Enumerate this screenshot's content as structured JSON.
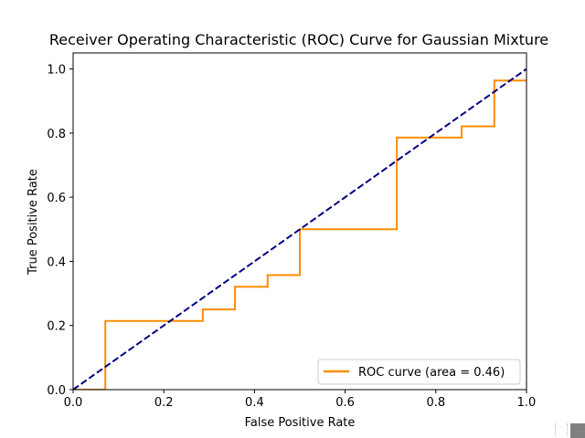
{
  "chart_data": {
    "type": "line",
    "title": "Receiver Operating Characteristic (ROC) Curve for Gaussian Mixture",
    "xlabel": "False Positive Rate",
    "ylabel": "True Positive Rate",
    "xlim": [
      0.0,
      1.0
    ],
    "ylim": [
      0.0,
      1.05
    ],
    "xticks": [
      0.0,
      0.2,
      0.4,
      0.6,
      0.8,
      1.0
    ],
    "yticks": [
      0.0,
      0.2,
      0.4,
      0.6,
      0.8,
      1.0
    ],
    "xtick_labels": [
      "0.0",
      "0.2",
      "0.4",
      "0.6",
      "0.8",
      "1.0"
    ],
    "ytick_labels": [
      "0.0",
      "0.2",
      "0.4",
      "0.6",
      "0.8",
      "1.0"
    ],
    "grid": false,
    "legend_position": "lower-right",
    "series": [
      {
        "name": "ROC curve (area = 0.46)",
        "color": "#ff8c00",
        "style": "solid",
        "x": [
          0.0,
          0.071,
          0.071,
          0.286,
          0.286,
          0.357,
          0.357,
          0.429,
          0.429,
          0.5,
          0.5,
          0.714,
          0.714,
          0.857,
          0.857,
          0.929,
          0.929,
          1.0
        ],
        "y": [
          0.0,
          0.0,
          0.214,
          0.214,
          0.25,
          0.25,
          0.321,
          0.321,
          0.357,
          0.357,
          0.5,
          0.5,
          0.786,
          0.786,
          0.821,
          0.821,
          0.964,
          0.964
        ]
      },
      {
        "color": "#000080",
        "style": "dashed",
        "x": [
          0.0,
          1.0
        ],
        "y": [
          0.0,
          1.0
        ]
      }
    ]
  }
}
